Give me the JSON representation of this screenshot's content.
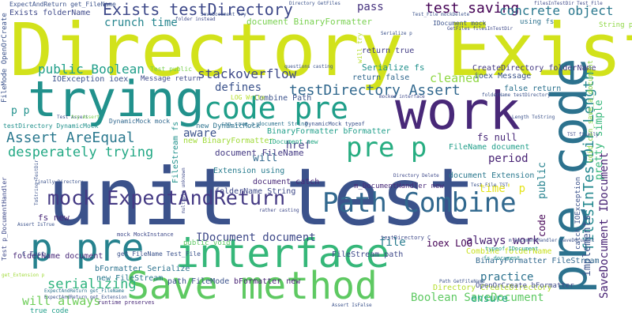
{
  "words": [
    {
      "text": "Directory Exists",
      "color": "#d2e21b"
    },
    {
      "text": "unit test",
      "color": "#3b528b"
    },
    {
      "text": "trying",
      "color": "#21918c"
    },
    {
      "text": "work",
      "color": "#482878"
    },
    {
      "text": "pre code",
      "color": "#2c728e"
    },
    {
      "text": "interface",
      "color": "#35b779"
    },
    {
      "text": "Save method",
      "color": "#5ec962"
    },
    {
      "text": "p pre",
      "color": "#26828e"
    },
    {
      "text": "Path Combine",
      "color": "#31688e"
    },
    {
      "text": "mock ExpectAndReturn",
      "color": "#443983"
    },
    {
      "text": "code pre",
      "color": "#1f9e89"
    },
    {
      "text": "pre p",
      "color": "#27ad81"
    },
    {
      "text": "Exists testDirectory",
      "color": "#3e4989"
    },
    {
      "text": "test saving",
      "color": "#440154"
    },
    {
      "text": "concrete object",
      "color": "#2a788e"
    },
    {
      "text": "testDirectory Assert",
      "color": "#31688e"
    },
    {
      "text": "Assert AreEqual",
      "color": "#2a788e"
    },
    {
      "text": "desperately trying",
      "color": "#22a884"
    },
    {
      "text": "stackoverflow",
      "color": "#3e4989"
    },
    {
      "text": "public Boolean",
      "color": "#1f9e89"
    },
    {
      "text": "crunch time",
      "color": "#25858e"
    },
    {
      "text": "filesInTestDir Length",
      "color": "#23888e"
    },
    {
      "text": "SaveDocument IDocument",
      "color": "#482374"
    },
    {
      "text": "IDocument document",
      "color": "#3e4989"
    },
    {
      "text": "serializing",
      "color": "#2db27d"
    },
    {
      "text": "will always",
      "color": "#6ece58"
    },
    {
      "text": "pass",
      "color": "#46327e"
    },
    {
      "text": "cleaned",
      "color": "#8fd744"
    },
    {
      "text": "defines",
      "color": "#3b528b"
    },
    {
      "text": "aware",
      "color": "#3b528b"
    },
    {
      "text": "href",
      "color": "#433e85"
    },
    {
      "text": "period",
      "color": "#482374"
    },
    {
      "text": "practice",
      "color": "#2c728e"
    },
    {
      "text": "always work",
      "color": "#481f70"
    },
    {
      "text": "Boolean SaveDocument",
      "color": "#5ec962"
    },
    {
      "text": "ensure",
      "color": "#21a585"
    },
    {
      "text": "file",
      "color": "#287c8e"
    },
    {
      "text": "pretty simple",
      "color": "#35b779"
    },
    {
      "text": "implements",
      "color": "#3b528b"
    },
    {
      "text": "public",
      "color": "#26828e"
    },
    {
      "text": "will",
      "color": "#31688e"
    },
    {
      "text": "code",
      "color": "#440154"
    },
    {
      "text": "time' p",
      "color": "#e5e419"
    },
    {
      "text": "p p",
      "color": "#21918c"
    },
    {
      "text": "fs new",
      "color": "#482878"
    },
    {
      "text": "document FileName",
      "color": "#443983"
    },
    {
      "text": "document BinaryFormatter",
      "color": "#7ad151"
    },
    {
      "text": "Exists folderName",
      "color": "#3e4989"
    },
    {
      "text": "ExpectAndReturn get_FileName",
      "color": "#3b528b"
    },
    {
      "text": "FileName document",
      "color": "#1f9e89"
    },
    {
      "text": "document Extension",
      "color": "#2a788e"
    },
    {
      "text": "folderName String",
      "color": "#3e4989"
    },
    {
      "text": "Extension using",
      "color": "#287c8e"
    },
    {
      "text": "new BinaryFormatter",
      "color": "#a0da39"
    },
    {
      "text": "BinaryFormatter bFormatter",
      "color": "#1f9e89"
    },
    {
      "text": "Combine Path",
      "color": "#3b528b"
    },
    {
      "text": "BinaryFormatter FileStream",
      "color": "#31688e"
    },
    {
      "text": "Combine folderName",
      "color": "#c8e020"
    },
    {
      "text": "Directory CreateDirectory",
      "color": "#b5de2b"
    },
    {
      "text": "bFormatter Serialize",
      "color": "#2c728e"
    },
    {
      "text": "new FileStream",
      "color": "#2a788e"
    },
    {
      "text": "folderName document",
      "color": "#482878"
    },
    {
      "text": "path FileMode",
      "color": "#3b528b"
    },
    {
      "text": "OpenOrCreate bFormatter",
      "color": "#3e4989"
    },
    {
      "text": "bFormatter new",
      "color": "#482374"
    },
    {
      "text": "document catch",
      "color": "#482878"
    },
    {
      "text": "FileStream path",
      "color": "#3e4989"
    },
    {
      "text": "m_DocumentHandler new",
      "color": "#482878"
    },
    {
      "text": "ioex LOG",
      "color": "#440154"
    },
    {
      "text": "fs null",
      "color": "#482878"
    },
    {
      "text": "Serialize fs",
      "color": "#21918c"
    },
    {
      "text": "return true",
      "color": "#433e85"
    },
    {
      "text": "return false",
      "color": "#31688e"
    },
    {
      "text": "ioex Message",
      "color": "#3b528b"
    },
    {
      "text": "false return",
      "color": "#2c728e"
    },
    {
      "text": "CreateDirectory folderName",
      "color": "#443983"
    },
    {
      "text": "IOException ioex",
      "color": "#3b528b"
    },
    {
      "text": "Message return",
      "color": "#3e4989"
    },
    {
      "text": "LOG Write",
      "color": "#b5de2b"
    },
    {
      "text": "IDocument new",
      "color": "#22a884"
    },
    {
      "text": "new DynamicMock",
      "color": "#2c728e"
    },
    {
      "text": "DynamicMock mock",
      "color": "#31688e"
    },
    {
      "text": "testDirectory DynamicMock",
      "color": "#21918c"
    },
    {
      "text": "get_FileName Test_File",
      "color": "#3b528b"
    },
    {
      "text": "public void",
      "color": "#5ec962"
    },
    {
      "text": "FileMode OpenOrCreate",
      "color": "#3b528b"
    },
    {
      "text": "FileStream fs",
      "color": "#21918c"
    },
    {
      "text": "Test p_DocumentHandler",
      "color": "#3e4989"
    },
    {
      "text": "Test public",
      "color": "#7ad151"
    },
    {
      "text": "C Test",
      "color": "#3b528b"
    },
    {
      "text": "true code",
      "color": "#1f9e89"
    },
    {
      "text": "ExpectAndReturn get_Extension",
      "color": "#3b528b"
    },
    {
      "text": "ExpectAndReturn get_FileName",
      "color": "#2c728e"
    },
    {
      "text": "mock MockInstance",
      "color": "#3e4989"
    },
    {
      "text": "runtime preserves",
      "color": "#482878"
    },
    {
      "text": "catch IOException",
      "color": "#3b528b"
    },
    {
      "text": "void can_save_a_document",
      "color": "#8fd744"
    },
    {
      "text": "can_save_a_document String",
      "color": "#2c728e"
    },
    {
      "text": "DynamicMock typeof",
      "color": "#3b528b"
    },
    {
      "text": "typeof IDocument",
      "color": "#1f9e89"
    },
    {
      "text": "fs document",
      "color": "#21918c"
    },
    {
      "text": "m_DocumentHandler SaveDocument",
      "color": "#3b528b"
    },
    {
      "text": "testDirectory C",
      "color": "#3e4989"
    },
    {
      "text": "Directory GetFiles",
      "color": "#3b528b"
    },
    {
      "text": "Test_File mockDelete",
      "color": "#3b528b"
    },
    {
      "text": "IDocument mock",
      "color": "#3b528b"
    },
    {
      "text": "GetFiles filesInTestDir",
      "color": "#3e4989"
    },
    {
      "text": "filesInTestDir Test_File",
      "color": "#3e4989"
    },
    {
      "text": "String path",
      "color": "#8fd744"
    },
    {
      "text": "using fs",
      "color": "#2c728e"
    },
    {
      "text": "folder instead",
      "color": "#3e4989"
    },
    {
      "text": "Length ToString",
      "color": "#3b528b"
    },
    {
      "text": "Path GetFileName",
      "color": "#3b528b"
    },
    {
      "text": "mocked interface",
      "color": "#3e4989"
    },
    {
      "text": "questions casting",
      "color": "#3b528b"
    },
    {
      "text": "Directory Delete",
      "color": "#3e4989"
    },
    {
      "text": "folderName testDirectory",
      "color": "#3b528b"
    },
    {
      "text": "will try",
      "color": "#b5de2b"
    },
    {
      "text": "Serialize p",
      "color": "#3b528b"
    },
    {
      "text": "Test Assert",
      "color": "#3b528b"
    },
    {
      "text": "try Assert",
      "color": "#7ad151"
    },
    {
      "text": "finally Directory",
      "color": "#3b528b"
    },
    {
      "text": "multiple unknown",
      "color": "#3e4989"
    },
    {
      "text": "ToString TestDir",
      "color": "#3b528b"
    },
    {
      "text": "Assert IsTrue",
      "color": "#3b528b"
    },
    {
      "text": "get_Extension p",
      "color": "#a0da39"
    },
    {
      "text": "SaveDocument try",
      "color": "#3b528b"
    },
    {
      "text": "TST finally",
      "color": "#3e4989"
    },
    {
      "text": "Assert IsFalse",
      "color": "#3b528b"
    },
    {
      "text": "Test_File TST",
      "color": "#3b528b"
    },
    {
      "text": "rather casting",
      "color": "#3e4989"
    }
  ]
}
